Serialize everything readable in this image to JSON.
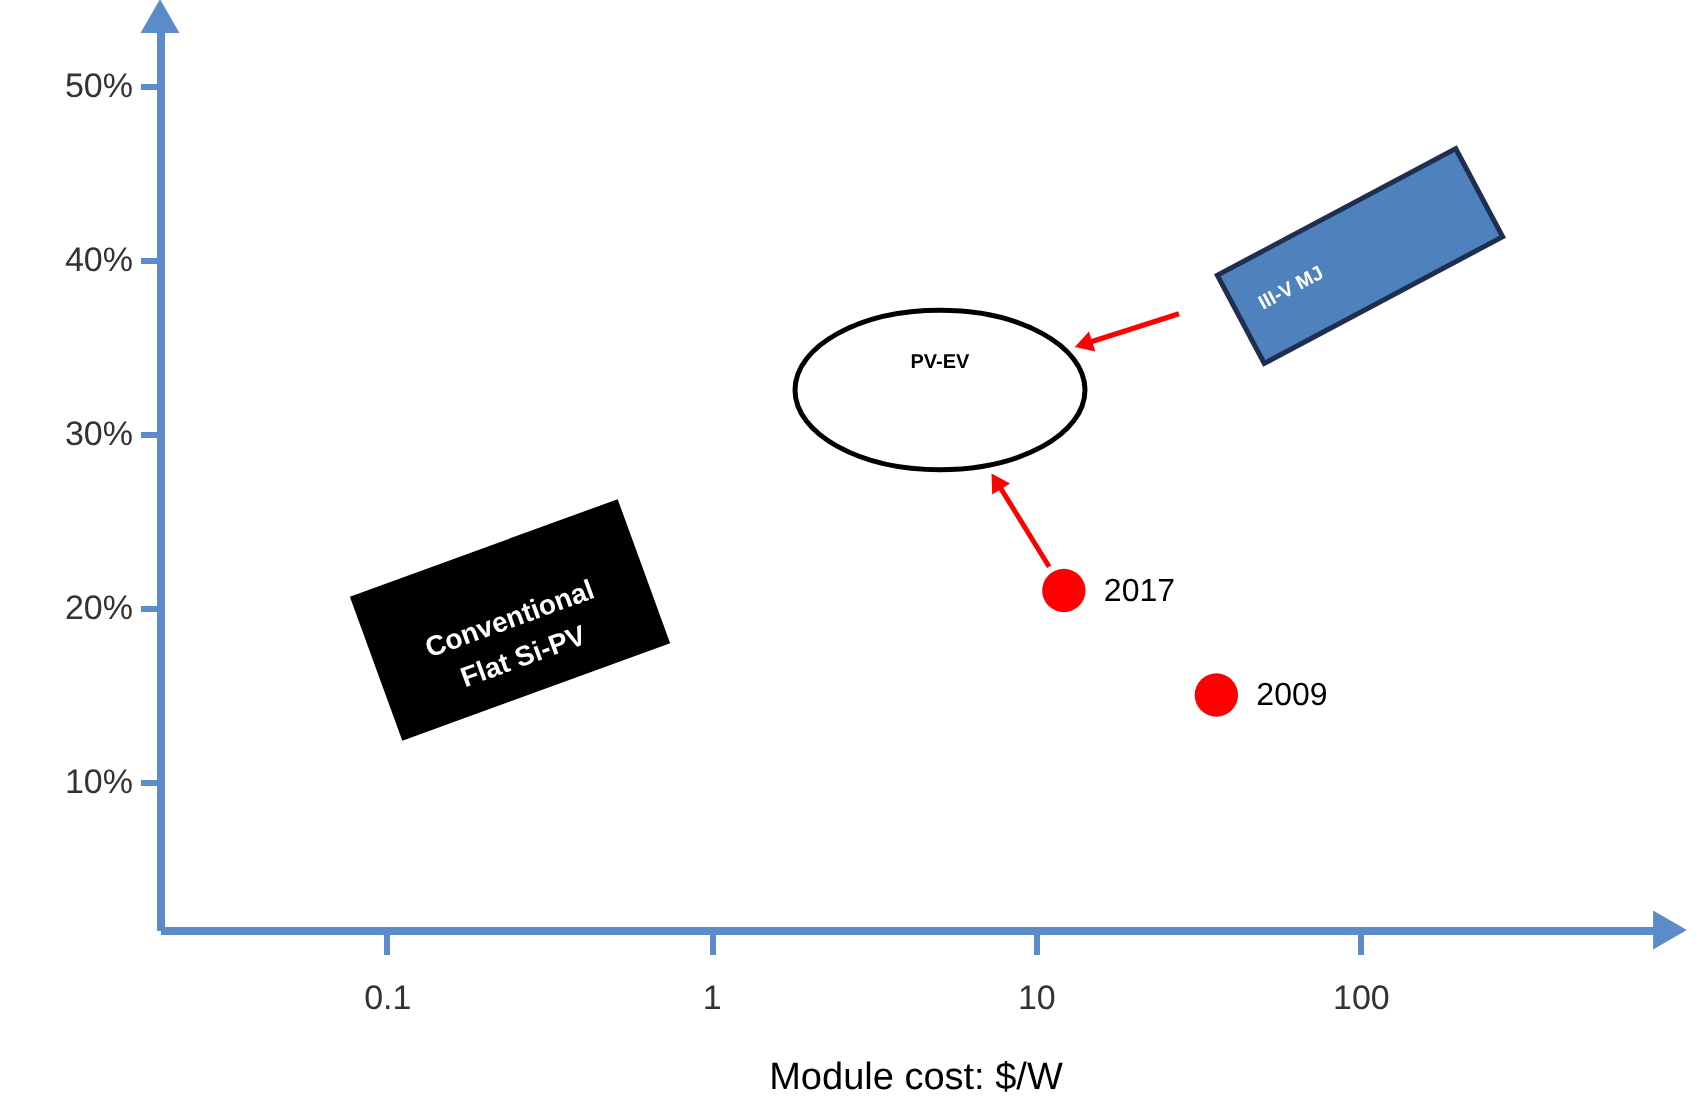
{
  "chart_data": {
    "type": "scatter",
    "xlabel": "Module cost: $/W",
    "log": "x",
    "marker": "circle",
    "color": "#ff0000",
    "x": [
      12.2,
      36
    ],
    "values": [
      21,
      15
    ],
    "xlim": [
      0.02,
      900
    ],
    "xticks": [
      0.1,
      1,
      10,
      100
    ],
    "ylim": [
      1.5,
      54
    ],
    "yticks": [
      {
        "value": 10,
        "label": "10%"
      },
      {
        "value": 20,
        "label": "20%"
      },
      {
        "value": 30,
        "label": "30%"
      },
      {
        "value": 40,
        "label": "40%"
      },
      {
        "value": 50,
        "label": "50%"
      }
    ],
    "annotations": [
      "PV-EV",
      "III-V MJ",
      "Conventional Flat Si-PV",
      {
        "text": "2017",
        "x": 12.2,
        "y": 21
      },
      {
        "text": "2009",
        "x": 36,
        "y": 15
      }
    ]
  }
}
